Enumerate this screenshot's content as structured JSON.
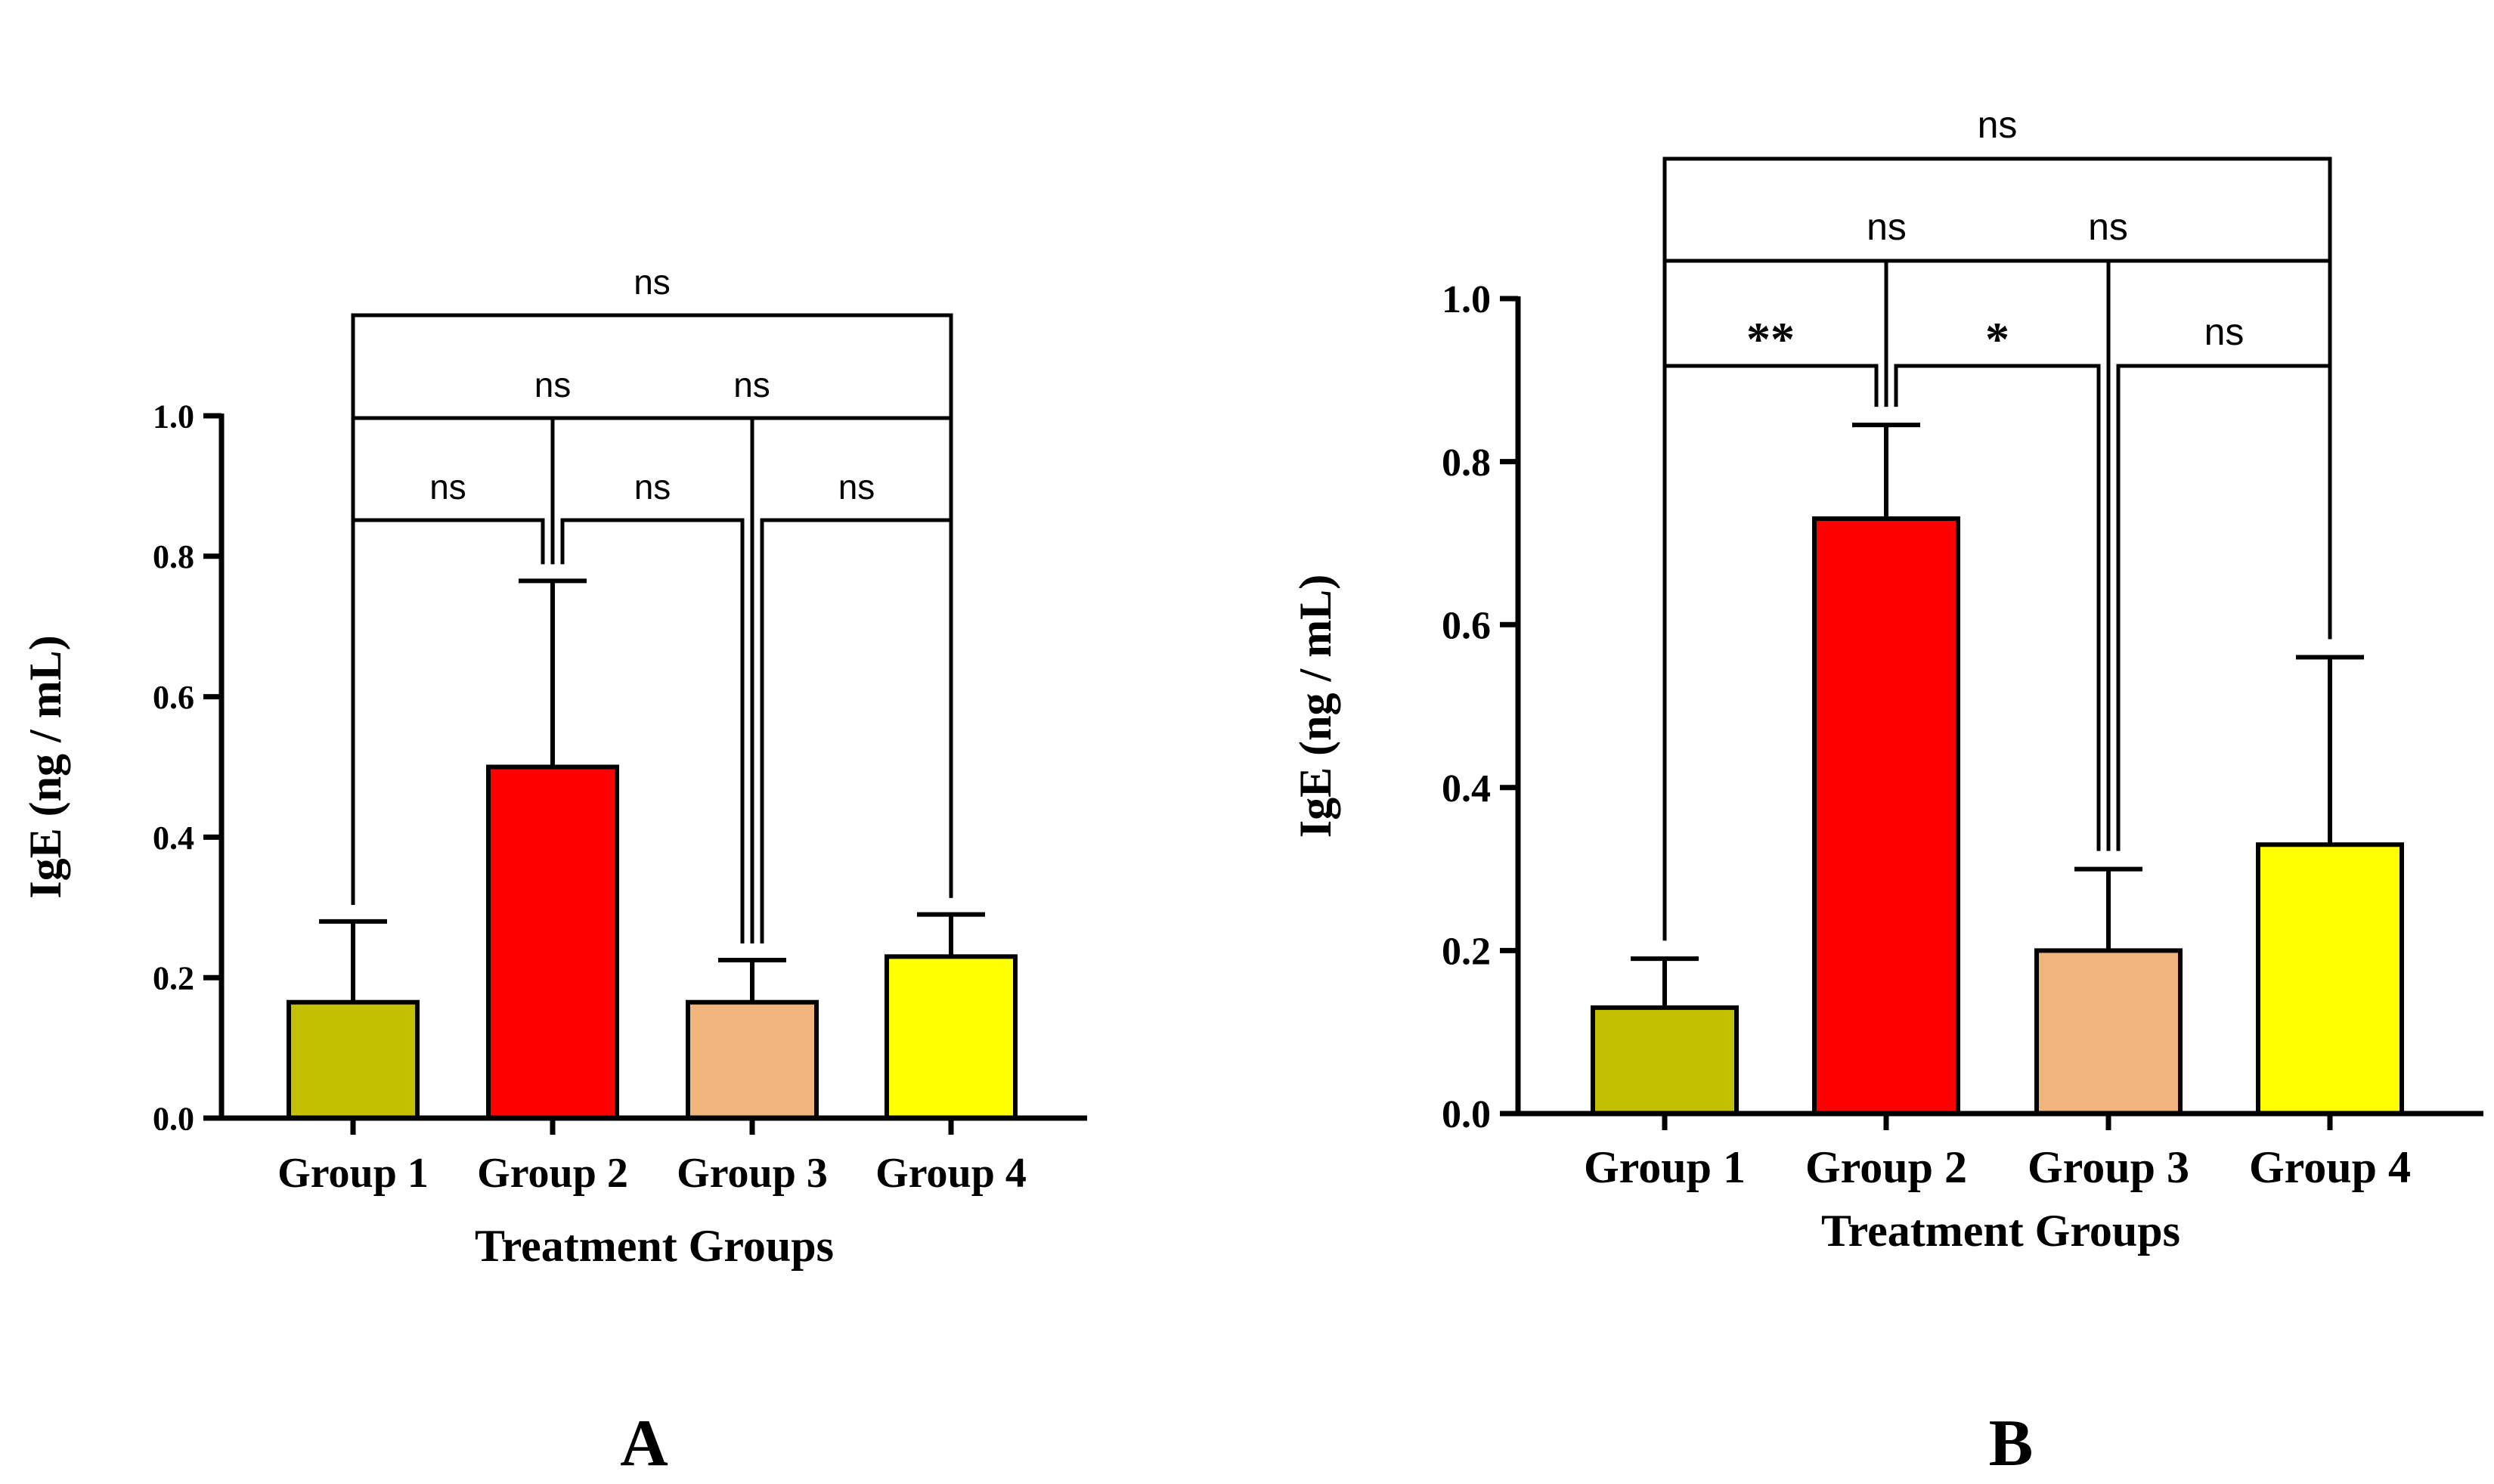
{
  "chart_data": [
    {
      "type": "bar",
      "panel": "A",
      "panel_label": "A",
      "categories": [
        "Group 1",
        "Group 2",
        "Group 3",
        "Group 4"
      ],
      "values": [
        0.165,
        0.5,
        0.165,
        0.23
      ],
      "errors": [
        0.115,
        0.265,
        0.06,
        0.06
      ],
      "colors": [
        "#c2c000",
        "#ff0000",
        "#f0b57c",
        "#ffff00"
      ],
      "xlabel": "Treatment Groups",
      "ylabel": "IgE (ng / mL)",
      "ylim": [
        0,
        1.0
      ],
      "yticks": [
        "0.0",
        "0.2",
        "0.4",
        "0.6",
        "0.8",
        "1.0"
      ],
      "grid": false,
      "comparisons": [
        {
          "from": 0,
          "to": 1,
          "label": "ns"
        },
        {
          "from": 1,
          "to": 2,
          "label": "ns"
        },
        {
          "from": 2,
          "to": 3,
          "label": "ns"
        },
        {
          "from": 0,
          "to": 2,
          "label": "ns"
        },
        {
          "from": 1,
          "to": 3,
          "label": "ns"
        },
        {
          "from": 0,
          "to": 3,
          "label": "ns"
        }
      ]
    },
    {
      "type": "bar",
      "panel": "B",
      "panel_label": "B",
      "categories": [
        "Group 1",
        "Group 2",
        "Group 3",
        "Group 4"
      ],
      "values": [
        0.13,
        0.73,
        0.2,
        0.33
      ],
      "errors": [
        0.06,
        0.115,
        0.1,
        0.23
      ],
      "colors": [
        "#c2c000",
        "#ff0000",
        "#f0b57c",
        "#ffff00"
      ],
      "xlabel": "Treatment Groups",
      "ylabel": "IgE (ng / mL)",
      "ylim": [
        0,
        1.0
      ],
      "yticks": [
        "0.0",
        "0.2",
        "0.4",
        "0.6",
        "0.8",
        "1.0"
      ],
      "grid": false,
      "comparisons": [
        {
          "from": 0,
          "to": 1,
          "label": "**"
        },
        {
          "from": 1,
          "to": 2,
          "label": "*"
        },
        {
          "from": 2,
          "to": 3,
          "label": "ns"
        },
        {
          "from": 0,
          "to": 2,
          "label": "ns"
        },
        {
          "from": 1,
          "to": 3,
          "label": "ns"
        },
        {
          "from": 0,
          "to": 3,
          "label": "ns"
        }
      ]
    }
  ]
}
